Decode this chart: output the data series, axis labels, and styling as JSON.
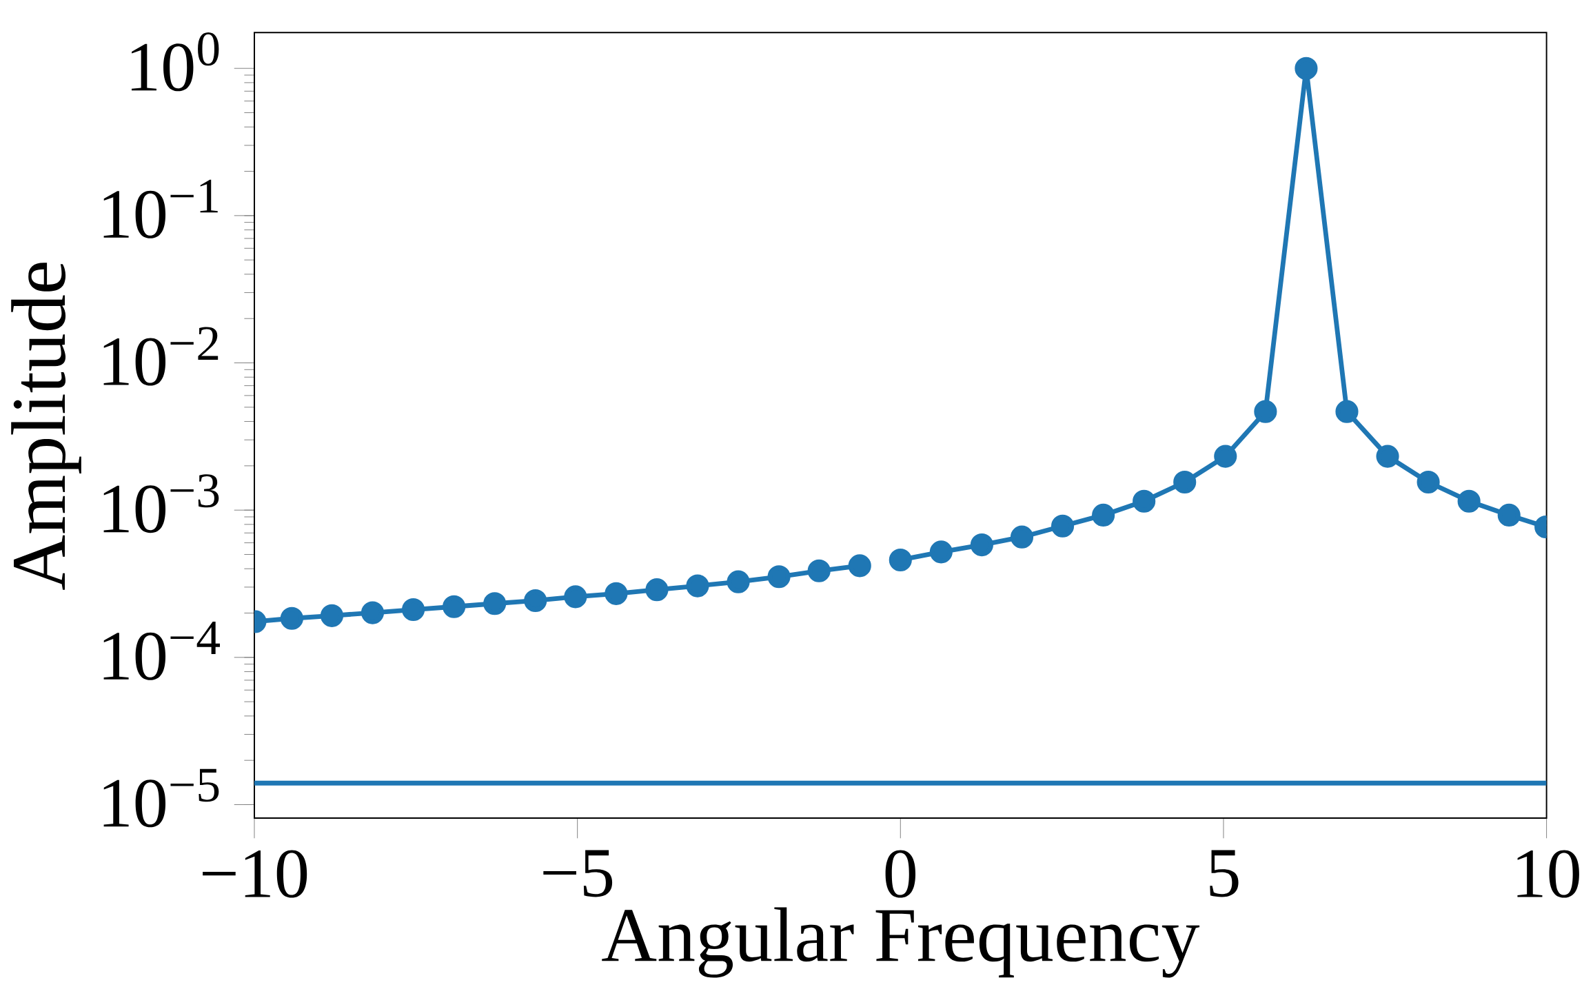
{
  "chart_data": {
    "type": "line",
    "xlabel": "Angular Frequency",
    "ylabel": "Amplitude",
    "log": "y",
    "marker": "circle",
    "xlim": [
      -10,
      10
    ],
    "ylim": [
      8.1e-06,
      1.75
    ],
    "xticks": [
      {
        "value": -10,
        "label": "−10"
      },
      {
        "value": -5,
        "label": "−5"
      },
      0,
      5,
      10
    ],
    "yticks": [
      {
        "value": 1e-05,
        "label": "10$^{−5}$"
      },
      {
        "value": 0.0001,
        "label": "10$^{−4}$"
      },
      {
        "value": 0.001,
        "label": "10$^{−3}$"
      },
      {
        "value": 0.01,
        "label": "10$^{−2}$"
      },
      {
        "value": 0.1,
        "label": "10$^{−1}$"
      },
      {
        "value": 1,
        "label": "10$^{0}$"
      }
    ],
    "series": [
      {
        "color": "#1f77b4",
        "x": [
          -9.99,
          -9.42,
          -8.8,
          -8.17,
          -7.54,
          -6.91,
          -6.28,
          -5.65,
          -5.03,
          -4.4,
          -3.77,
          -3.14,
          -2.51,
          -1.88,
          -1.26,
          -0.63
        ],
        "values": [
          0.000175,
          0.000184,
          0.000192,
          0.000201,
          0.000211,
          0.000221,
          0.000232,
          0.000243,
          0.000258,
          0.000271,
          0.000288,
          0.000306,
          0.000326,
          0.000353,
          0.000387,
          0.000419
        ]
      },
      {
        "color": "#1f77b4",
        "x": [
          0,
          0.63,
          1.26,
          1.88,
          2.51,
          3.14,
          3.77,
          4.4,
          5.03,
          5.65,
          6.28,
          6.91,
          7.54,
          8.17,
          8.8,
          9.42,
          9.99
        ],
        "values": [
          0.000459,
          0.00052,
          0.000581,
          0.000657,
          0.00078,
          0.000925,
          0.00115,
          0.00155,
          0.00232,
          0.00467,
          1,
          0.00467,
          0.00232,
          0.00155,
          0.00115,
          0.000925,
          0.00077
        ]
      }
    ],
    "ref_lines": [
      {
        "axis": "y",
        "value": 1.4e-05,
        "color": "#1f77b4"
      }
    ]
  }
}
